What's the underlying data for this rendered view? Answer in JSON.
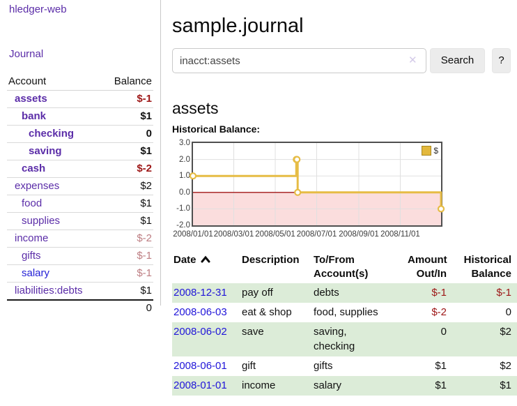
{
  "sidebar": {
    "app_title": "hledger-web",
    "journal_label": "Journal",
    "accounts_header": {
      "account": "Account",
      "balance": "Balance"
    },
    "accounts": [
      {
        "name": "assets",
        "balance": "$-1"
      },
      {
        "name": "bank",
        "balance": "$1"
      },
      {
        "name": "checking",
        "balance": "0"
      },
      {
        "name": "saving",
        "balance": "$1"
      },
      {
        "name": "cash",
        "balance": "$-2"
      },
      {
        "name": "expenses",
        "balance": "$2"
      },
      {
        "name": "food",
        "balance": "$1"
      },
      {
        "name": "supplies",
        "balance": "$1"
      },
      {
        "name": "income",
        "balance": "$-2"
      },
      {
        "name": "gifts",
        "balance": "$-1"
      },
      {
        "name": "salary",
        "balance": "$-1"
      },
      {
        "name": "liabilities:debts",
        "balance": "$1"
      }
    ],
    "total": "0"
  },
  "header": {
    "title": "sample.journal"
  },
  "search": {
    "query": "inacct:assets",
    "clear_icon": "✕",
    "search_label": "Search",
    "help_label": "?"
  },
  "main": {
    "account_title": "assets",
    "chart_label": "Historical Balance:"
  },
  "chart_data": {
    "type": "line",
    "style": "step-after",
    "title": "Historical Balance:",
    "series": [
      {
        "name": "$",
        "points": [
          [
            "2008-01-01",
            1
          ],
          [
            "2008-06-01",
            2
          ],
          [
            "2008-06-02",
            2
          ],
          [
            "2008-06-03",
            0
          ],
          [
            "2008-12-31",
            -1
          ]
        ]
      }
    ],
    "x_ticks": [
      "2008/01/01",
      "2008/03/01",
      "2008/05/01",
      "2008/07/01",
      "2008/09/01",
      "2008/11/01"
    ],
    "y_ticks": [
      "3.0",
      "2.0",
      "1.0",
      "0.0",
      "-1.0",
      "-2.0"
    ],
    "ylim": [
      -2,
      3
    ],
    "xlim": [
      "2008-01-01",
      "2008-12-31"
    ],
    "legend": {
      "label": "$",
      "position": "top-right"
    },
    "grid": true,
    "colors": {
      "line": "#e6bc45",
      "negative_fill": "#fbdddd",
      "zero_line": "#a01414",
      "grid": "#e0e0e0",
      "border": "#4f4f4f"
    }
  },
  "register": {
    "headers": {
      "date": "Date",
      "description": "Description",
      "tofrom": "To/From Account(s)",
      "amount": "Amount Out/In",
      "balance": "Historical Balance"
    },
    "rows": [
      {
        "date": "2008-12-31",
        "description": "pay off",
        "accounts": "debts",
        "amount": "$-1",
        "balance": "$-1"
      },
      {
        "date": "2008-06-03",
        "description": "eat & shop",
        "accounts": "food, supplies",
        "amount": "$-2",
        "balance": "0"
      },
      {
        "date": "2008-06-02",
        "description": "save",
        "accounts": "saving,\nchecking",
        "amount": "0",
        "balance": "$2"
      },
      {
        "date": "2008-06-01",
        "description": "gift",
        "accounts": "gifts",
        "amount": "$1",
        "balance": "$2"
      },
      {
        "date": "2008-01-01",
        "description": "income",
        "accounts": "salary",
        "amount": "$1",
        "balance": "$1"
      }
    ]
  }
}
